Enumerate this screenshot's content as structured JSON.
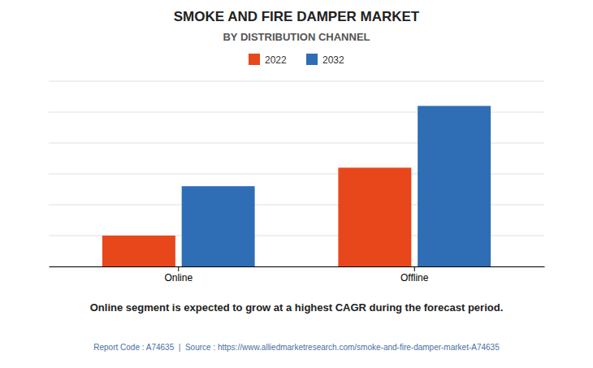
{
  "chart_data": {
    "type": "bar",
    "title": "SMOKE AND FIRE DAMPER MARKET",
    "subtitle": "BY DISTRIBUTION CHANNEL",
    "categories": [
      "Online",
      "Offline"
    ],
    "series": [
      {
        "name": "2022",
        "color": "#E8471C",
        "values": [
          1.0,
          3.2
        ]
      },
      {
        "name": "2032",
        "color": "#2F6DB5",
        "values": [
          2.6,
          5.2
        ]
      }
    ],
    "ylim": [
      0,
      6.0
    ],
    "yticks": [
      0,
      1,
      2,
      3,
      4,
      5,
      6
    ],
    "grid": true,
    "tick_labels": "x",
    "legend": "top",
    "annotations": [
      "Online segment is expected to grow at a highest CAGR during the forecast period.",
      "Report Code : A74635  |  Source : https://www.alliedmarketresearch.com/smoke-and-fire-damper-market-A74635"
    ]
  }
}
